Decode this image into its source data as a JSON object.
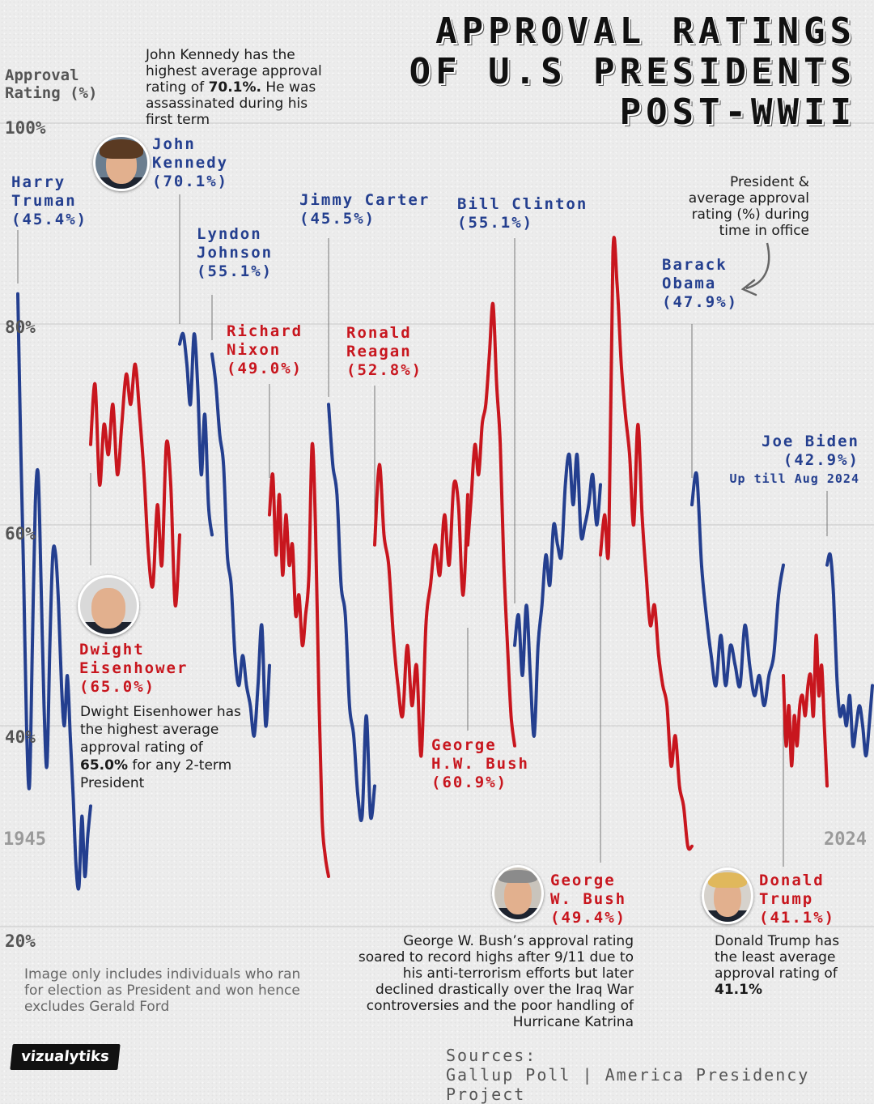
{
  "title": [
    "APPROVAL RATINGS",
    "OF U.S PRESIDENTS",
    "POST-WWII"
  ],
  "y_axis_label": [
    "Approval",
    "Rating (%)"
  ],
  "legend_note": [
    "President &",
    "average approval",
    "rating (%) during",
    "time in  office"
  ],
  "chart_data": {
    "type": "line",
    "title": "APPROVAL RATINGS OF U.S PRESIDENTS POST-WWII",
    "ylabel": "Approval Rating (%)",
    "ylim": [
      20,
      100
    ],
    "y_ticks": [
      "100%",
      "80%",
      "60%",
      "40%",
      "20%"
    ],
    "x_range_labels": [
      "1945",
      "2024"
    ],
    "grid": true,
    "colors": {
      "democrat": "#243f8f",
      "republican": "#c8161e"
    },
    "series": [
      {
        "name": "Harry Truman",
        "party": "democrat",
        "average": "45.4%",
        "values": [
          83,
          68,
          55,
          40,
          34,
          48,
          62,
          65,
          54,
          42,
          36,
          48,
          57,
          57,
          52,
          44,
          40,
          45,
          39,
          33,
          26,
          24,
          31,
          25,
          29,
          32
        ]
      },
      {
        "name": "Dwight Eisenhower",
        "party": "republican",
        "average": "65.0%",
        "values": [
          68,
          74,
          64,
          70,
          67,
          72,
          65,
          70,
          75,
          72,
          76,
          71,
          65,
          57,
          54,
          62,
          56,
          68,
          64,
          52,
          59
        ]
      },
      {
        "name": "John Kennedy",
        "party": "democrat",
        "average": "70.1%",
        "values": [
          78,
          79,
          76,
          72,
          79,
          74,
          65,
          71,
          62,
          59
        ]
      },
      {
        "name": "Lyndon Johnson",
        "party": "democrat",
        "average": "55.1%",
        "values": [
          77,
          74,
          69,
          66,
          57,
          54,
          47,
          44,
          47,
          44,
          42,
          39,
          44,
          50,
          40,
          46
        ]
      },
      {
        "name": "Richard Nixon",
        "party": "republican",
        "average": "49.0%",
        "values": [
          61,
          65,
          57,
          63,
          55,
          61,
          56,
          58,
          51,
          53,
          48,
          51,
          55,
          68,
          60,
          44,
          31,
          27,
          25
        ]
      },
      {
        "name": "Jimmy Carter",
        "party": "democrat",
        "average": "45.5%",
        "values": [
          72,
          66,
          63,
          54,
          51,
          42,
          39,
          33,
          31,
          41,
          31,
          34
        ]
      },
      {
        "name": "Ronald Reagan",
        "party": "republican",
        "average": "52.8%",
        "values": [
          58,
          66,
          59,
          56,
          49,
          44,
          41,
          48,
          42,
          46,
          37,
          50,
          54,
          58,
          55,
          61,
          56,
          64,
          62,
          53,
          63
        ]
      },
      {
        "name": "George H.W. Bush",
        "party": "republican",
        "average": "60.9%",
        "values": [
          58,
          63,
          68,
          65,
          70,
          72,
          77,
          82,
          74,
          68,
          56,
          48,
          41,
          38
        ]
      },
      {
        "name": "Bill Clinton",
        "party": "democrat",
        "average": "55.1%",
        "values": [
          48,
          51,
          45,
          52,
          45,
          39,
          48,
          52,
          57,
          54,
          60,
          58,
          57,
          64,
          67,
          62,
          67,
          59,
          60,
          62,
          65,
          60,
          64
        ]
      },
      {
        "name": "George W. Bush",
        "party": "republican",
        "average": "49.4%",
        "values": [
          57,
          61,
          58,
          87,
          84,
          76,
          71,
          67,
          60,
          70,
          61,
          55,
          50,
          52,
          47,
          44,
          42,
          36,
          39,
          34,
          32,
          28,
          28
        ]
      },
      {
        "name": "Barack Obama",
        "party": "democrat",
        "average": "47.9%",
        "values": [
          62,
          65,
          56,
          51,
          47,
          44,
          49,
          44,
          48,
          46,
          44,
          50,
          46,
          43,
          45,
          42,
          45,
          47,
          53,
          56
        ]
      },
      {
        "name": "Donald Trump",
        "party": "republican",
        "average": "41.1%",
        "values": [
          45,
          38,
          42,
          36,
          41,
          38,
          42,
          43,
          41,
          44,
          45,
          41,
          49,
          43,
          46,
          40,
          34
        ]
      },
      {
        "name": "Joe Biden",
        "party": "democrat",
        "average": "42.9%",
        "values": [
          56,
          57,
          53,
          45,
          41,
          42,
          40,
          43,
          38,
          40,
          42,
          40,
          37,
          40,
          44
        ]
      }
    ]
  },
  "labels": {
    "truman": {
      "name": [
        "Harry",
        "Truman"
      ],
      "avg": "(45.4%)"
    },
    "eisenhower": {
      "name": [
        "Dwight",
        "Eisenhower"
      ],
      "avg": "(65.0%)"
    },
    "kennedy": {
      "name": [
        "John",
        "Kennedy"
      ],
      "avg": "(70.1%)"
    },
    "johnson": {
      "name": [
        "Lyndon",
        "Johnson"
      ],
      "avg": "(55.1%)"
    },
    "nixon": {
      "name": [
        "Richard",
        "Nixon"
      ],
      "avg": "(49.0%)"
    },
    "carter": {
      "name": [
        "Jimmy Carter"
      ],
      "avg": "(45.5%)"
    },
    "reagan": {
      "name": [
        "Ronald",
        "Reagan"
      ],
      "avg": "(52.8%)"
    },
    "hwbush": {
      "name": [
        "George",
        "H.W. Bush"
      ],
      "avg": "(60.9%)"
    },
    "clinton": {
      "name": [
        "Bill Clinton"
      ],
      "avg": "(55.1%)"
    },
    "wbush": {
      "name": [
        "George",
        "W. Bush"
      ],
      "avg": "(49.4%)"
    },
    "obama": {
      "name": [
        "Barack",
        "Obama"
      ],
      "avg": "(47.9%)"
    },
    "trump": {
      "name": [
        "Donald",
        "Trump"
      ],
      "avg": "(41.1%)"
    },
    "biden": {
      "name": [
        "Joe Biden"
      ],
      "avg": "(42.9%)",
      "extra": "Up till Aug 2024"
    }
  },
  "notes": {
    "kennedy": {
      "pre": "John Kennedy has the highest average approval rating of ",
      "bold": "70.1%.",
      "post": " He was assassinated during his first term"
    },
    "eisenhower": {
      "pre": "Dwight Eisenhower has the highest average approval rating of ",
      "bold": "65.0%",
      "post": " for any 2-term President"
    },
    "wbush": {
      "text": "George W. Bush’s approval rating soared to record highs after 9/11 due to his anti-terrorism efforts but later declined drastically over the Iraq War controversies and the poor handling of Hurricane Katrina"
    },
    "trump": {
      "pre": "Donald Trump has the least average approval rating of ",
      "bold": "41.1%",
      "post": ""
    },
    "exclusion": {
      "text": "Image only includes individuals who ran for election as President and won hence excludes Gerald Ford"
    }
  },
  "brand": "vizualytiks",
  "sources": {
    "heading": "Sources:",
    "list": "Gallup Poll | America Presidency Project"
  }
}
